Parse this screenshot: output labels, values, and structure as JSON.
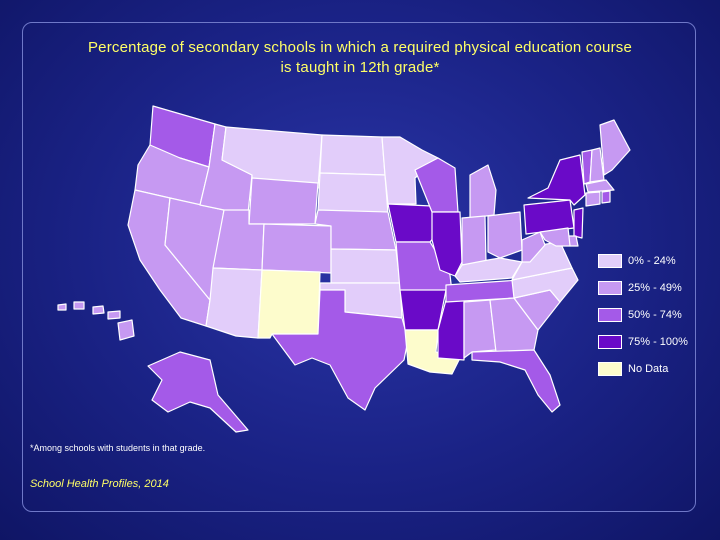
{
  "title": {
    "line1": "Percentage of secondary schools in which a required physical education course",
    "line2": "is taught in 12th grade*"
  },
  "colors": {
    "background": "#1a2285",
    "title_text": "#ffff66",
    "border": "#6f78c8"
  },
  "legend": [
    {
      "key": "c0",
      "label": "0% - 24%",
      "color": "#e2cdfa"
    },
    {
      "key": "c1",
      "label": "25% - 49%",
      "color": "#c699f2"
    },
    {
      "key": "c2",
      "label": "50% - 74%",
      "color": "#a45ae8"
    },
    {
      "key": "c3",
      "label": "75% - 100%",
      "color": "#6a0ac8"
    },
    {
      "key": "nd",
      "label": "No Data",
      "color": "#fdfccc"
    }
  ],
  "states": {
    "WA": "c2",
    "OR": "c1",
    "CA": "c1",
    "NV": "c1",
    "ID": "c1",
    "MT": "c0",
    "WY": "c1",
    "UT": "c1",
    "CO": "c1",
    "AZ": "c0",
    "NM": "nd",
    "ND": "c0",
    "SD": "c0",
    "NE": "c1",
    "KS": "c0",
    "OK": "c0",
    "TX": "c2",
    "MN": "c0",
    "IA": "c3",
    "MO": "c2",
    "AR": "c3",
    "LA": "nd",
    "WI": "c2",
    "IL": "c3",
    "MS": "c3",
    "MI": "c1",
    "IN": "c1",
    "KY": "c0",
    "TN": "c2",
    "AL": "c1",
    "OH": "c1",
    "WV": "c1",
    "GA": "c1",
    "FL": "c2",
    "SC": "c1",
    "NC": "c0",
    "VA": "c0",
    "PA": "c3",
    "NY": "c3",
    "VT": "c2",
    "NH": "c1",
    "ME": "c1",
    "MA": "c1",
    "CT": "c1",
    "RI": "c2",
    "NJ": "c3",
    "DE": "c1",
    "MD": "c1",
    "AK": "c2",
    "HI": "c1"
  },
  "footnote": "*Among schools with students in that grade.",
  "source": "School Health Profiles, 2014"
}
